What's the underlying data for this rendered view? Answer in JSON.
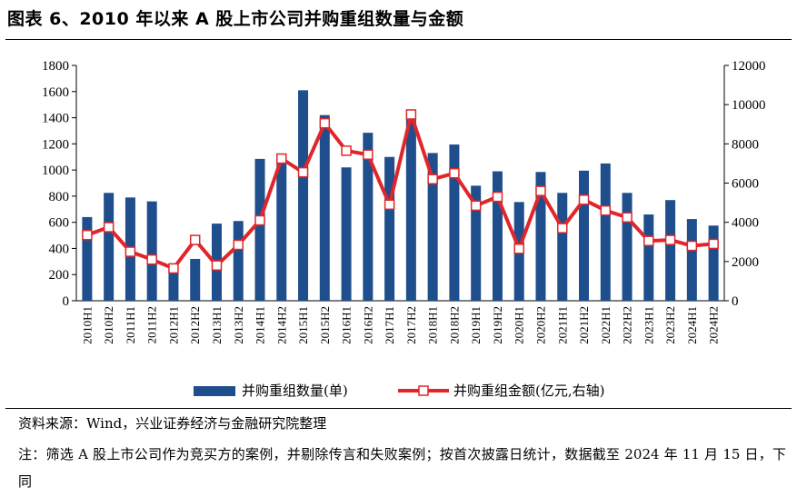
{
  "title": "图表 6、2010 年以来 A 股上市公司并购重组数量与金额",
  "source": "资料来源：Wind，兴业证券经济与金融研究院整理",
  "note": "注：筛选 A 股上市公司作为竞买方的案例，并剔除传言和失败案例；按首次披露日统计，数据截至 2024 年 11 月 15 日，下同",
  "colors": {
    "bar": "#1f4e8c",
    "line": "#e0262b",
    "marker_fill": "#ffffff"
  },
  "chart_data": {
    "type": "bar+line",
    "categories": [
      "2010H1",
      "2010H2",
      "2011H1",
      "2011H2",
      "2012H1",
      "2012H2",
      "2013H1",
      "2013H2",
      "2014H1",
      "2014H2",
      "2015H1",
      "2015H2",
      "2016H1",
      "2016H2",
      "2017H1",
      "2017H2",
      "2018H1",
      "2018H2",
      "2019H1",
      "2019H2",
      "2020H1",
      "2020H2",
      "2021H1",
      "2021H2",
      "2022H1",
      "2022H2",
      "2023H1",
      "2023H2",
      "2024H1",
      "2024H2"
    ],
    "series": [
      {
        "name": "并购重组数量(单)",
        "type": "bar",
        "axis": "left",
        "values": [
          640,
          825,
          790,
          760,
          255,
          320,
          590,
          610,
          1085,
          1090,
          1610,
          1420,
          1020,
          1285,
          1100,
          1400,
          1130,
          1195,
          880,
          990,
          755,
          985,
          825,
          995,
          1050,
          825,
          660,
          770,
          625,
          575
        ]
      },
      {
        "name": "并购重组金额(亿元,右轴)",
        "type": "line",
        "axis": "right",
        "values": [
          3350,
          3750,
          2500,
          2100,
          1650,
          3100,
          1800,
          2850,
          4100,
          7250,
          6550,
          9050,
          7650,
          7450,
          4900,
          9500,
          6200,
          6500,
          4850,
          5300,
          2650,
          5600,
          3700,
          5150,
          4600,
          4250,
          3050,
          3100,
          2800,
          2900
        ]
      }
    ],
    "y_left": {
      "min": 0,
      "max": 1800,
      "ticks": [
        "0",
        "200",
        "400",
        "600",
        "800",
        "1000",
        "1200",
        "1400",
        "1600",
        "1800"
      ]
    },
    "y_right": {
      "min": 0,
      "max": 12000,
      "ticks": [
        "0",
        "2000",
        "4000",
        "6000",
        "8000",
        "10000",
        "12000"
      ]
    },
    "grid": false,
    "legend": "bottom"
  }
}
